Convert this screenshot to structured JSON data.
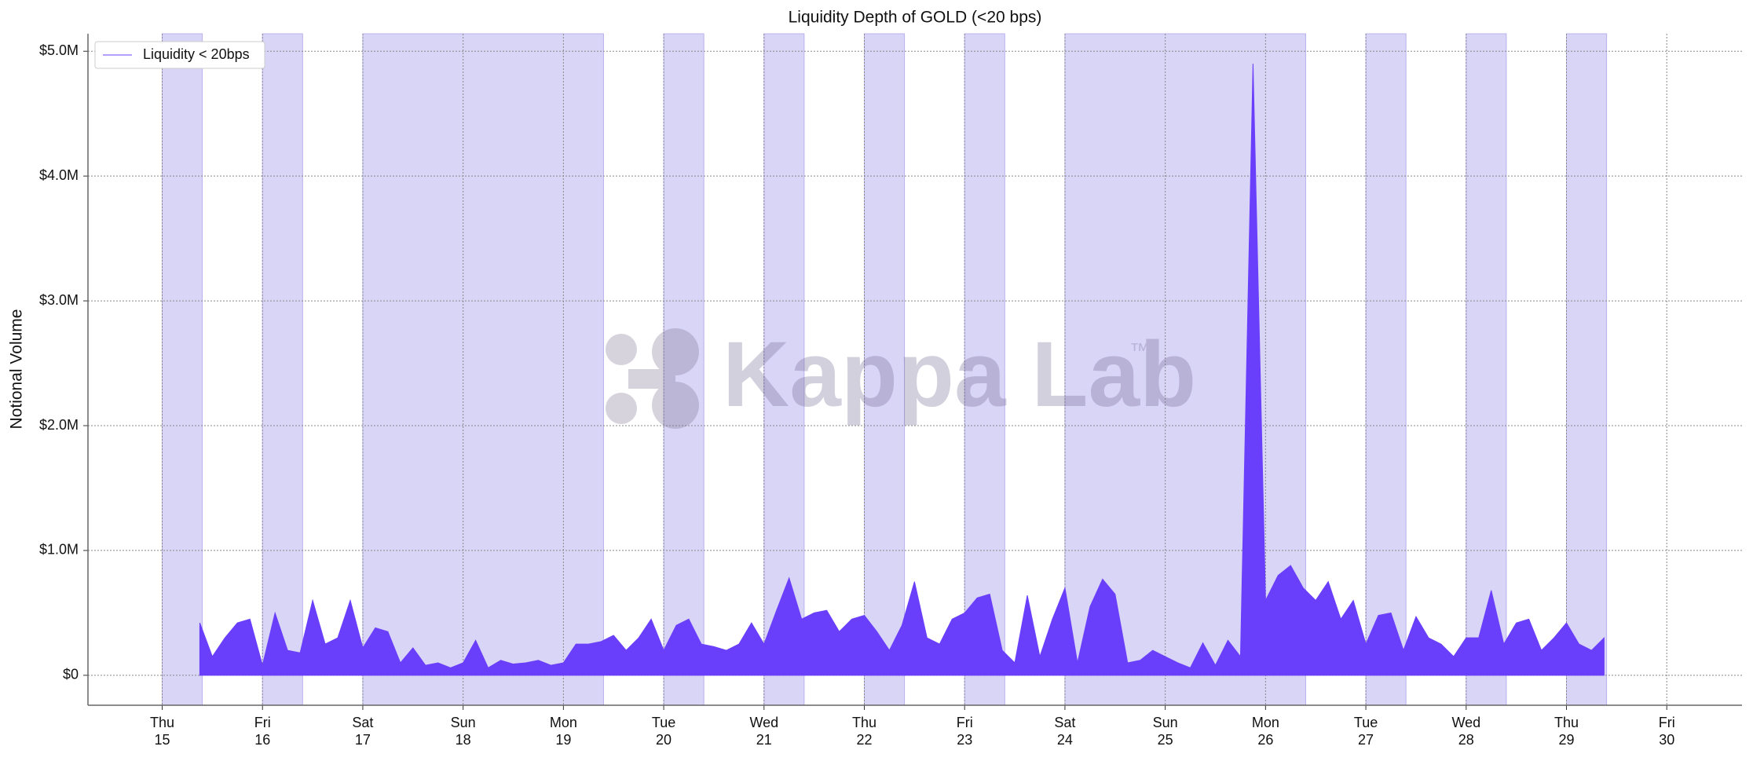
{
  "chart_data": {
    "type": "area",
    "title": "Liquidity Depth of GOLD (<20 bps)",
    "ylabel": "Notional Volume",
    "watermark": "Kappa Lab",
    "watermark_sup": "™",
    "legend": "upper left",
    "grid": true,
    "xlim": [
      14.26,
      30.75
    ],
    "ylim": [
      -240000,
      5140000
    ],
    "xticks": [
      {
        "value": 15,
        "label": "Thu"
      },
      {
        "value": 16,
        "label": "Fri"
      },
      {
        "value": 17,
        "label": "Sat"
      },
      {
        "value": 18,
        "label": "Sun"
      },
      {
        "value": 19,
        "label": "Mon"
      },
      {
        "value": 20,
        "label": "Tue"
      },
      {
        "value": 21,
        "label": "Wed"
      },
      {
        "value": 22,
        "label": "Thu"
      },
      {
        "value": 23,
        "label": "Fri"
      },
      {
        "value": 24,
        "label": "Sat"
      },
      {
        "value": 25,
        "label": "Sun"
      },
      {
        "value": 26,
        "label": "Mon"
      },
      {
        "value": 27,
        "label": "Tue"
      },
      {
        "value": 28,
        "label": "Wed"
      },
      {
        "value": 29,
        "label": "Thu"
      },
      {
        "value": 30,
        "label": "Fri"
      }
    ],
    "yticks": [
      {
        "value": 0,
        "label": "$0"
      },
      {
        "value": 1000000,
        "label": "$1.0M"
      },
      {
        "value": 2000000,
        "label": "$2.0M"
      },
      {
        "value": 3000000,
        "label": "$3.0M"
      },
      {
        "value": 4000000,
        "label": "$4.0M"
      },
      {
        "value": 5000000,
        "label": "$5.0M"
      }
    ],
    "shaded_spans": [
      [
        15,
        15.4
      ],
      [
        16,
        16.4
      ],
      [
        17,
        19.4
      ],
      [
        20,
        20.4
      ],
      [
        21,
        21.4
      ],
      [
        22,
        22.4
      ],
      [
        23,
        23.4
      ],
      [
        24,
        26.4
      ],
      [
        27,
        27.4
      ],
      [
        28,
        28.4
      ],
      [
        29,
        29.4
      ]
    ],
    "shade_color": "#d9d5f6",
    "x": [
      15.375,
      15.5,
      15.625,
      15.75,
      15.875,
      16,
      16.125,
      16.25,
      16.375,
      16.5,
      16.625,
      16.75,
      16.875,
      17,
      17.125,
      17.25,
      17.375,
      17.5,
      17.625,
      17.75,
      17.875,
      18,
      18.125,
      18.25,
      18.375,
      18.5,
      18.625,
      18.75,
      18.875,
      19,
      19.125,
      19.25,
      19.375,
      19.5,
      19.625,
      19.75,
      19.875,
      20,
      20.125,
      20.25,
      20.375,
      20.5,
      20.625,
      20.75,
      20.875,
      21,
      21.125,
      21.25,
      21.375,
      21.5,
      21.625,
      21.75,
      21.875,
      22,
      22.125,
      22.25,
      22.375,
      22.5,
      22.625,
      22.75,
      22.875,
      23,
      23.125,
      23.25,
      23.375,
      23.5,
      23.625,
      23.75,
      23.875,
      24,
      24.125,
      24.25,
      24.375,
      24.5,
      24.625,
      24.75,
      24.875,
      25,
      25.125,
      25.25,
      25.375,
      25.5,
      25.625,
      25.75,
      25.875,
      26,
      26.125,
      26.25,
      26.375,
      26.5,
      26.625,
      26.75,
      26.875,
      27,
      27.125,
      27.25,
      27.375,
      27.5,
      27.625,
      27.75,
      27.875,
      28,
      28.125,
      28.25,
      28.375,
      28.5,
      28.625,
      28.75,
      28.875,
      29,
      29.125,
      29.25,
      29.375
    ],
    "series": [
      {
        "name": "Liquidity < 20bps",
        "color": "#6a3ffb",
        "values": [
          420000,
          150000,
          300000,
          420000,
          450000,
          80000,
          500000,
          200000,
          180000,
          600000,
          250000,
          300000,
          600000,
          220000,
          380000,
          350000,
          100000,
          220000,
          80000,
          100000,
          60000,
          100000,
          280000,
          60000,
          120000,
          90000,
          100000,
          120000,
          80000,
          100000,
          250000,
          250000,
          270000,
          320000,
          200000,
          300000,
          450000,
          200000,
          400000,
          450000,
          250000,
          230000,
          200000,
          250000,
          420000,
          250000,
          520000,
          780000,
          450000,
          500000,
          520000,
          350000,
          450000,
          480000,
          350000,
          200000,
          400000,
          750000,
          300000,
          250000,
          450000,
          500000,
          620000,
          650000,
          200000,
          100000,
          640000,
          150000,
          450000,
          700000,
          100000,
          550000,
          770000,
          650000,
          100000,
          120000,
          200000,
          150000,
          100000,
          60000,
          260000,
          80000,
          280000,
          150000,
          4900000,
          600000,
          800000,
          880000,
          700000,
          600000,
          750000,
          450000,
          600000,
          250000,
          480000,
          500000,
          200000,
          470000,
          300000,
          250000,
          150000,
          300000,
          300000,
          680000,
          250000,
          420000,
          450000,
          200000,
          300000,
          420000,
          250000,
          200000,
          300000
        ]
      }
    ]
  }
}
